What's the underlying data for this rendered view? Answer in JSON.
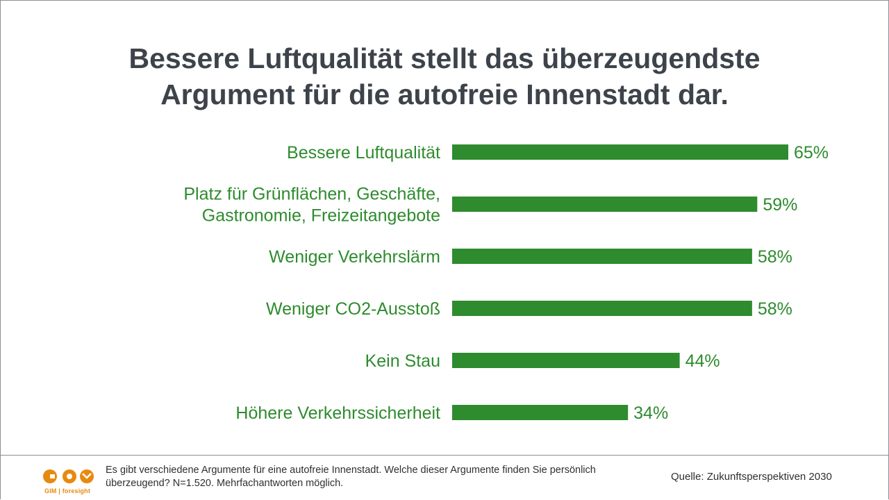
{
  "title_lines": [
    "Bessere Luftqualität stellt das überzeugendste",
    "Argument für die autofreie Innenstadt dar."
  ],
  "colors": {
    "bar": "#2e8b2e",
    "label": "#2e8b2e",
    "title": "#3d434a",
    "logo": "#e8890f"
  },
  "chart_data": {
    "type": "bar",
    "orientation": "horizontal",
    "categories": [
      [
        "Bessere Luftqualität"
      ],
      [
        "Platz für Grünflächen, Geschäfte,",
        "Gastronomie, Freizeitangebote"
      ],
      [
        "Weniger Verkehrslärm"
      ],
      [
        "Weniger CO2-Ausstoß"
      ],
      [
        "Kein Stau"
      ],
      [
        "Höhere Verkehrssicherheit"
      ]
    ],
    "values": [
      65,
      59,
      58,
      58,
      44,
      34
    ],
    "value_labels": [
      "65%",
      "59%",
      "58%",
      "58%",
      "44%",
      "34%"
    ],
    "unit": "%",
    "xlim": [
      0,
      65
    ],
    "grid": false,
    "legend": "none"
  },
  "footer": {
    "logo_text": "GIM | foresight",
    "question": "Es gibt verschiedene Argumente für eine autofreie Innenstadt. Welche dieser Argumente finden Sie persönlich überzeugend? N=1.520. Mehrfachantworten möglich.",
    "source": "Quelle: Zukunftsperspektiven 2030"
  }
}
